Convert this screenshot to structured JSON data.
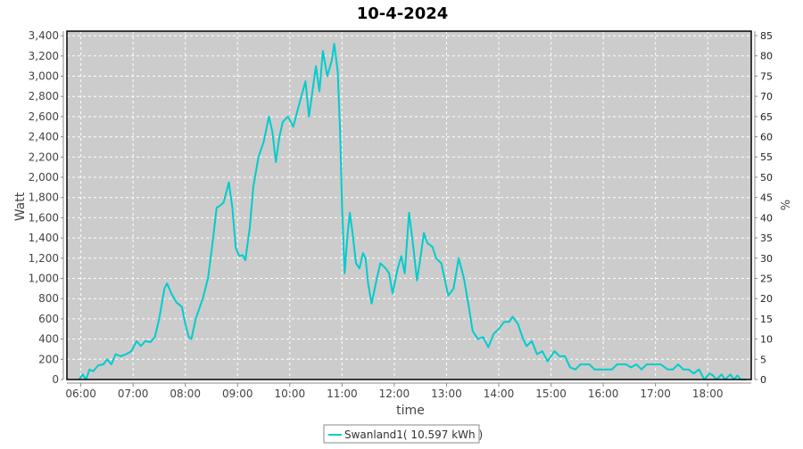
{
  "chart_data": {
    "type": "line",
    "title": "10-4-2024",
    "xlabel": "time",
    "ylabel": "Watt",
    "y2label": "%",
    "xlim": [
      "05:44",
      "18:50"
    ],
    "ylim": [
      0,
      3445
    ],
    "y2lim": [
      0,
      86.1
    ],
    "xticks": [
      "06:00",
      "07:00",
      "08:00",
      "09:00",
      "10:00",
      "11:00",
      "12:00",
      "13:00",
      "14:00",
      "15:00",
      "16:00",
      "17:00",
      "18:00"
    ],
    "yticks": [
      0,
      200,
      400,
      600,
      800,
      1000,
      1200,
      1400,
      1600,
      1800,
      2000,
      2200,
      2400,
      2600,
      2800,
      3000,
      3200,
      3400
    ],
    "ytick_labels": [
      "0",
      "200",
      "400",
      "600",
      "800",
      "1,000",
      "1,200",
      "1,400",
      "1,600",
      "1,800",
      "2,000",
      "2,200",
      "2,400",
      "2,600",
      "2,800",
      "3,000",
      "3,200",
      "3,400"
    ],
    "y2ticks": [
      0,
      5,
      10,
      15,
      20,
      25,
      30,
      35,
      40,
      45,
      50,
      55,
      60,
      65,
      70,
      75,
      80,
      85
    ],
    "grid": true,
    "legend_position": "bottom",
    "colors": {
      "series": "#00cccc",
      "plot_bg": "#cccccc",
      "grid": "#ffffff"
    },
    "series": [
      {
        "name": "Swanland1( 10.597 kWh )",
        "x": [
          "05:58",
          "06:02",
          "06:06",
          "06:10",
          "06:14",
          "06:20",
          "06:26",
          "06:30",
          "06:35",
          "06:40",
          "06:46",
          "06:52",
          "06:58",
          "07:04",
          "07:09",
          "07:14",
          "07:20",
          "07:25",
          "07:30",
          "07:36",
          "07:39",
          "07:44",
          "07:50",
          "07:56",
          "08:00",
          "08:04",
          "08:07",
          "08:12",
          "08:20",
          "08:26",
          "08:32",
          "08:36",
          "08:40",
          "08:44",
          "08:50",
          "08:54",
          "08:58",
          "09:02",
          "09:06",
          "09:09",
          "09:14",
          "09:18",
          "09:24",
          "09:30",
          "09:36",
          "09:40",
          "09:44",
          "09:48",
          "09:52",
          "09:58",
          "10:04",
          "10:10",
          "10:18",
          "10:22",
          "10:26",
          "10:30",
          "10:34",
          "10:38",
          "10:43",
          "10:48",
          "10:51",
          "10:55",
          "10:58",
          "11:00",
          "11:03",
          "11:06",
          "11:09",
          "11:12",
          "11:16",
          "11:20",
          "11:24",
          "11:27",
          "11:30",
          "11:34",
          "11:40",
          "11:44",
          "11:50",
          "11:54",
          "11:58",
          "12:04",
          "12:08",
          "12:12",
          "12:17",
          "12:22",
          "12:26",
          "12:30",
          "12:34",
          "12:38",
          "12:44",
          "12:48",
          "12:54",
          "13:02",
          "13:08",
          "13:14",
          "13:20",
          "13:26",
          "13:30",
          "13:36",
          "13:42",
          "13:48",
          "13:54",
          "14:00",
          "14:06",
          "14:12",
          "14:16",
          "14:22",
          "14:28",
          "14:32",
          "14:38",
          "14:44",
          "14:50",
          "14:56",
          "15:04",
          "15:10",
          "15:16",
          "15:22",
          "15:28",
          "15:34",
          "15:44",
          "15:50",
          "16:00",
          "16:10",
          "16:16",
          "16:26",
          "16:32",
          "16:38",
          "16:44",
          "16:50",
          "16:58",
          "17:06",
          "17:14",
          "17:20",
          "17:26",
          "17:32",
          "17:38",
          "17:44",
          "17:50",
          "17:56",
          "18:02",
          "18:06",
          "18:10",
          "18:16",
          "18:20",
          "18:26",
          "18:30",
          "18:34",
          "18:38",
          "18:44"
        ],
        "y": [
          0,
          50,
          0,
          100,
          80,
          140,
          150,
          200,
          150,
          250,
          230,
          250,
          280,
          380,
          330,
          380,
          370,
          420,
          600,
          900,
          950,
          850,
          760,
          720,
          550,
          420,
          400,
          600,
          800,
          1000,
          1400,
          1700,
          1720,
          1750,
          1950,
          1700,
          1300,
          1220,
          1230,
          1180,
          1500,
          1900,
          2200,
          2350,
          2600,
          2450,
          2150,
          2400,
          2550,
          2600,
          2500,
          2700,
          2950,
          2600,
          2850,
          3100,
          2850,
          3250,
          3000,
          3150,
          3320,
          3050,
          2400,
          1700,
          1050,
          1400,
          1650,
          1450,
          1150,
          1100,
          1250,
          1200,
          950,
          750,
          1000,
          1150,
          1100,
          1050,
          850,
          1100,
          1220,
          1050,
          1650,
          1300,
          980,
          1200,
          1450,
          1350,
          1310,
          1200,
          1150,
          830,
          900,
          1200,
          1000,
          700,
          480,
          400,
          420,
          320,
          450,
          500,
          570,
          570,
          620,
          550,
          400,
          330,
          380,
          250,
          280,
          180,
          280,
          230,
          230,
          120,
          100,
          150,
          150,
          100,
          100,
          100,
          150,
          150,
          120,
          150,
          100,
          150,
          150,
          150,
          100,
          100,
          150,
          100,
          100,
          60,
          100,
          0,
          60,
          40,
          0,
          50,
          0,
          50,
          0,
          40,
          0,
          0
        ]
      }
    ]
  }
}
